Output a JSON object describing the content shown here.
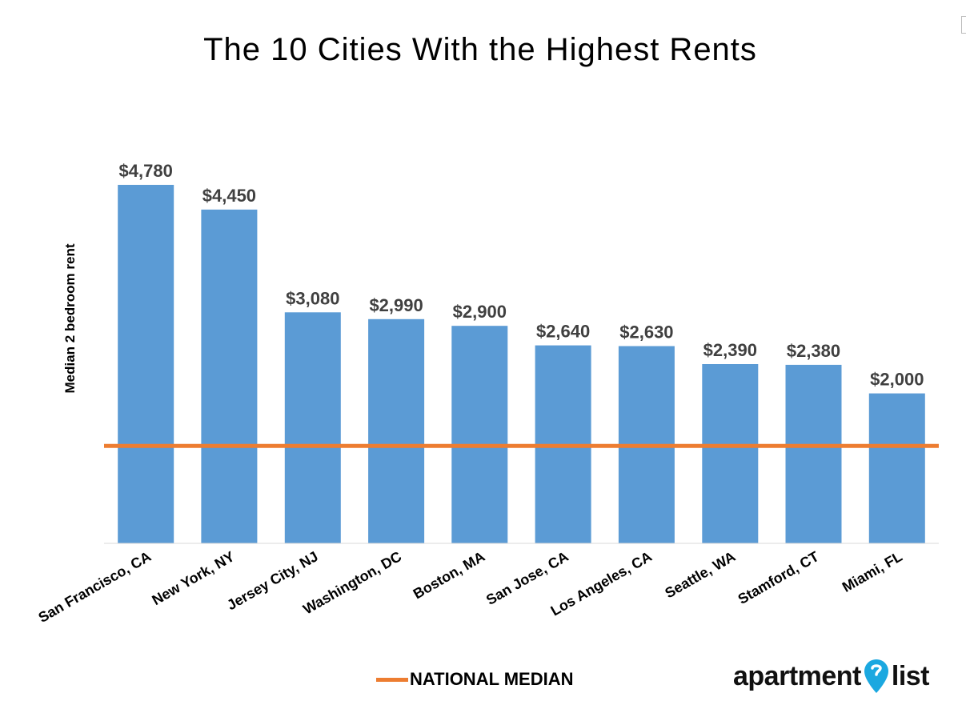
{
  "chart_data": {
    "type": "bar",
    "title": "The 10 Cities With the Highest Rents",
    "ylabel": "Median 2 bedroom rent",
    "xlabel": "",
    "categories": [
      "San Francisco, CA",
      "New York, NY",
      "Jersey City, NJ",
      "Washington, DC",
      "Boston, MA",
      "San Jose, CA",
      "Los Angeles, CA",
      "Seattle, WA",
      "Stamford, CT",
      "Miami, FL"
    ],
    "values": [
      4780,
      4450,
      3080,
      2990,
      2900,
      2640,
      2630,
      2390,
      2380,
      2000
    ],
    "data_labels": [
      "$4,780",
      "$4,450",
      "$3,080",
      "$2,990",
      "$2,900",
      "$2,640",
      "$2,630",
      "$2,390",
      "$2,380",
      "$2,000"
    ],
    "reference_line": {
      "label": "NATIONAL MEDIAN",
      "value": 1300,
      "color": "#ED7D31"
    },
    "ylim": [
      0,
      4780
    ],
    "grid": false,
    "legend_placement": "bottom-center",
    "bar_color": "#5B9BD5"
  },
  "brand": {
    "name_left": "apartment",
    "name_right": "list",
    "pin_color": "#1BA8E0"
  }
}
